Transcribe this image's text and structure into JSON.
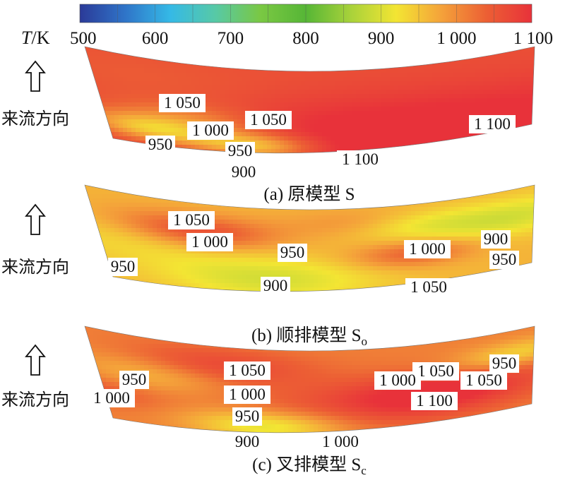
{
  "chart_data": [
    {
      "type": "heatmap",
      "colorbar": {
        "label_italic": "T",
        "label_unit": "/K",
        "ticks": [
          500,
          600,
          700,
          800,
          900,
          1000,
          1100
        ],
        "tick_labels": [
          "500",
          "600",
          "700",
          "800",
          "900",
          "1 000",
          "1 100"
        ],
        "range": [
          500,
          1100
        ],
        "colors": [
          "#2b3a98",
          "#2f74c8",
          "#35b9e6",
          "#57c9a6",
          "#7ac843",
          "#56b636",
          "#a9d23a",
          "#f3e533",
          "#f4a23a",
          "#ec5f34",
          "#e8323a"
        ]
      },
      "flow_label": "来流方向",
      "panels": [
        {
          "caption_prefix": "(a) 原模型 ",
          "caption_symbol": "S",
          "caption_sub": "",
          "contour_labels": [
            {
              "text": "1 050",
              "value": 1050
            },
            {
              "text": "1 000",
              "value": 1000
            },
            {
              "text": "1 050",
              "value": 1050
            },
            {
              "text": "950",
              "value": 950
            },
            {
              "text": "950",
              "value": 950
            },
            {
              "text": "900",
              "value": 900
            },
            {
              "text": "1 100",
              "value": 1100
            },
            {
              "text": "1 100",
              "value": 1100
            }
          ]
        },
        {
          "caption_prefix": "(b) 顺排模型 ",
          "caption_symbol": "S",
          "caption_sub": "o",
          "contour_labels": [
            {
              "text": "1 050",
              "value": 1050
            },
            {
              "text": "1 000",
              "value": 1000
            },
            {
              "text": "950",
              "value": 950
            },
            {
              "text": "950",
              "value": 950
            },
            {
              "text": "900",
              "value": 900
            },
            {
              "text": "1 000",
              "value": 1000
            },
            {
              "text": "1 050",
              "value": 1050
            },
            {
              "text": "900",
              "value": 900
            },
            {
              "text": "950",
              "value": 950
            }
          ]
        },
        {
          "caption_prefix": "(c) 叉排模型 ",
          "caption_symbol": "S",
          "caption_sub": "c",
          "contour_labels": [
            {
              "text": "950",
              "value": 950
            },
            {
              "text": "1 000",
              "value": 1000
            },
            {
              "text": "1 050",
              "value": 1050
            },
            {
              "text": "1 000",
              "value": 1000
            },
            {
              "text": "950",
              "value": 950
            },
            {
              "text": "900",
              "value": 900
            },
            {
              "text": "1 050",
              "value": 1050
            },
            {
              "text": "1 000",
              "value": 1000
            },
            {
              "text": "1 050",
              "value": 1050
            },
            {
              "text": "1 100",
              "value": 1100
            },
            {
              "text": "1 000",
              "value": 1000
            },
            {
              "text": "950",
              "value": 950
            }
          ]
        }
      ]
    }
  ]
}
